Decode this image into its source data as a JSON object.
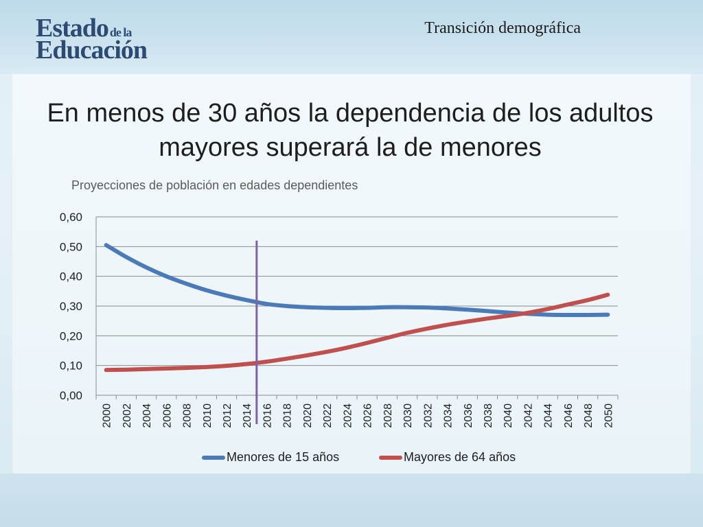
{
  "header": {
    "logo_line1": "Estado",
    "logo_small": "de la",
    "logo_line2": "Educación",
    "section_title": "Transición demográfica"
  },
  "slide_title": "En menos de 30 años la dependencia de los adultos mayores superará la de menores",
  "colors": {
    "series1": "#4a7ab8",
    "series2": "#c0504d",
    "marker": "#7f5fa8",
    "grid": "#8c8c8c"
  },
  "chart_data": {
    "type": "line",
    "title": "Proyecciones de población en edades dependientes",
    "xlabel": "",
    "ylabel": "",
    "ylim": [
      0,
      0.6
    ],
    "yticks": [
      "0,00",
      "0,10",
      "0,20",
      "0,30",
      "0,40",
      "0,50",
      "0,60"
    ],
    "categories": [
      "2000",
      "2002",
      "2004",
      "2006",
      "2008",
      "2010",
      "2012",
      "2014",
      "2016",
      "2018",
      "2020",
      "2022",
      "2024",
      "2026",
      "2028",
      "2030",
      "2032",
      "2034",
      "2036",
      "2038",
      "2040",
      "2042",
      "2044",
      "2046",
      "2048",
      "2050"
    ],
    "vertical_marker_year": 2015,
    "legend_position": "bottom",
    "grid": true,
    "series": [
      {
        "name": "Menores de 15 años",
        "values": [
          0.505,
          0.465,
          0.43,
          0.4,
          0.375,
          0.353,
          0.335,
          0.32,
          0.307,
          0.3,
          0.296,
          0.294,
          0.293,
          0.294,
          0.296,
          0.296,
          0.295,
          0.292,
          0.288,
          0.283,
          0.278,
          0.274,
          0.271,
          0.27,
          0.27,
          0.271
        ]
      },
      {
        "name": "Mayores de 64 años",
        "values": [
          0.085,
          0.086,
          0.088,
          0.09,
          0.092,
          0.095,
          0.099,
          0.105,
          0.113,
          0.123,
          0.134,
          0.146,
          0.16,
          0.176,
          0.193,
          0.21,
          0.224,
          0.237,
          0.248,
          0.258,
          0.267,
          0.277,
          0.29,
          0.305,
          0.32,
          0.338
        ]
      }
    ]
  }
}
